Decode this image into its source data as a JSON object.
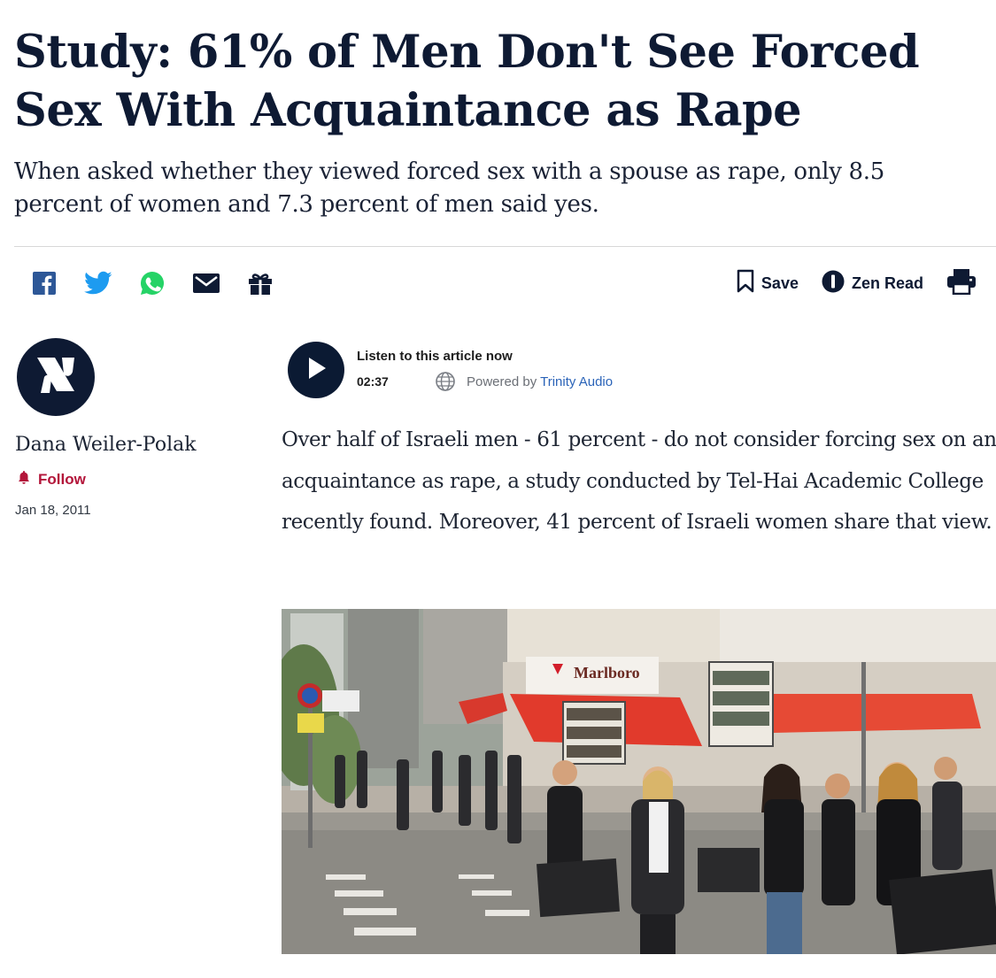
{
  "article": {
    "headline": "Study: 61% of Men Don't See Forced Sex With Acquaintance as Rape",
    "subheadline": "When asked whether they viewed forced sex with a spouse as rape, only 8.5 percent of women and 7.3 percent of men said yes.",
    "body": "Over half of Israeli men - 61 percent - do not consider forcing sex on an acquaintance as rape, a study conducted by Tel-Hai Academic College recently found. Moreover, 41 percent of Israeli women share that view."
  },
  "share_bar": {
    "icons": [
      "facebook-icon",
      "twitter-icon",
      "whatsapp-icon",
      "email-icon",
      "gift-icon"
    ]
  },
  "tools": {
    "save_label": "Save",
    "zen_read_label": "Zen Read",
    "print_icon": "printer-icon"
  },
  "author": {
    "name": "Dana Weiler-Polak",
    "follow_label": "Follow",
    "date": "Jan 18, 2011",
    "logo_icon": "haaretz-aleph-logo"
  },
  "audio_player": {
    "title": "Listen to this article now",
    "duration": "02:37",
    "powered_by": "Powered by",
    "provider": "Trinity Audio"
  },
  "photo": {
    "shop_sign": "Marlboro"
  },
  "colors": {
    "navy": "#0e1a33",
    "follow_red": "#b3153a",
    "facebook_blue": "#2d5797",
    "twitter_blue": "#1d9bf0",
    "whatsapp_green": "#25d366",
    "trinity_blue": "#2a63b8",
    "awning_red": "#e13a2c"
  }
}
